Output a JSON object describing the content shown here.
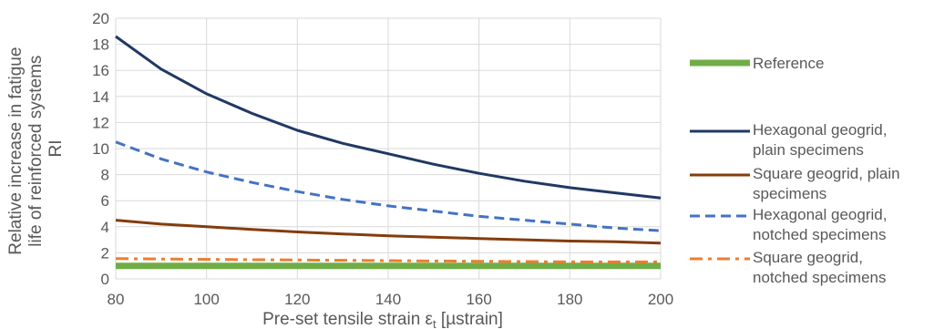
{
  "chart_data": {
    "type": "line",
    "ylabel_lines": [
      "Relative increase in fatigue",
      "life of reinforced systems",
      "RI"
    ],
    "xlabel": "Pre-set tensile strain ε",
    "xlabel_sub": "t",
    "xlabel_unit": " [µstrain]",
    "xlim": [
      80,
      200
    ],
    "ylim": [
      0,
      20
    ],
    "x_ticks": [
      80,
      100,
      120,
      140,
      160,
      180,
      200
    ],
    "y_ticks": [
      0,
      2,
      4,
      6,
      8,
      10,
      12,
      14,
      16,
      18,
      20
    ],
    "grid": true,
    "legend_position": "right",
    "series": [
      {
        "key": "reference",
        "name_lines": [
          "Reference"
        ],
        "color": "#70ad47",
        "dash": "solid",
        "x": [
          80,
          200
        ],
        "y": [
          1.0,
          1.0
        ]
      },
      {
        "key": "hex-plain",
        "name_lines": [
          "Hexagonal geogrid,",
          "plain specimens"
        ],
        "color": "#203864",
        "dash": "solid",
        "x": [
          80,
          90,
          100,
          110,
          120,
          130,
          140,
          150,
          160,
          170,
          180,
          190,
          200
        ],
        "y": [
          18.6,
          16.1,
          14.2,
          12.7,
          11.4,
          10.4,
          9.6,
          8.8,
          8.1,
          7.5,
          7.0,
          6.6,
          6.2
        ]
      },
      {
        "key": "square-plain",
        "name_lines": [
          "Square geogrid, plain",
          "specimens"
        ],
        "color": "#843c0c",
        "dash": "solid",
        "x": [
          80,
          90,
          100,
          110,
          120,
          130,
          140,
          150,
          160,
          170,
          180,
          190,
          200
        ],
        "y": [
          4.5,
          4.2,
          4.0,
          3.8,
          3.6,
          3.45,
          3.3,
          3.2,
          3.1,
          3.0,
          2.9,
          2.85,
          2.75
        ]
      },
      {
        "key": "hex-notched",
        "name_lines": [
          "Hexagonal geogrid,",
          "notched specimens"
        ],
        "color": "#4472c4",
        "dash": "dash",
        "x": [
          80,
          90,
          100,
          110,
          120,
          130,
          140,
          150,
          160,
          170,
          180,
          190,
          200
        ],
        "y": [
          10.5,
          9.2,
          8.2,
          7.4,
          6.7,
          6.1,
          5.6,
          5.2,
          4.8,
          4.5,
          4.2,
          3.9,
          3.7
        ]
      },
      {
        "key": "square-notched",
        "name_lines": [
          "Square geogrid,",
          "notched specimens"
        ],
        "color": "#ed7d31",
        "dash": "dashdot",
        "x": [
          80,
          100,
          120,
          140,
          160,
          180,
          200
        ],
        "y": [
          1.55,
          1.5,
          1.45,
          1.4,
          1.35,
          1.3,
          1.3
        ]
      }
    ]
  }
}
